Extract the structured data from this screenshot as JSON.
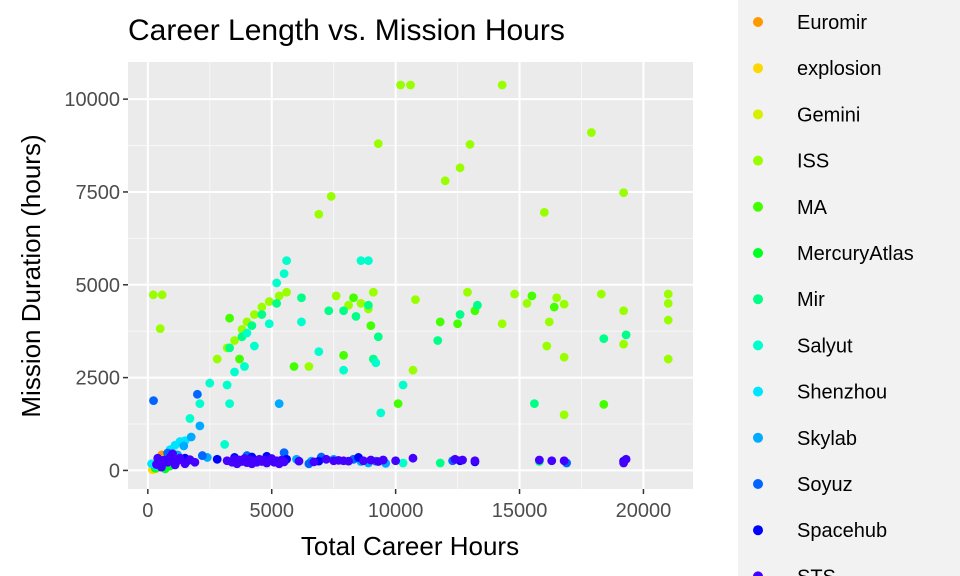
{
  "chart_data": {
    "type": "scatter",
    "title": "Career Length vs. Mission Hours",
    "xlabel": "Total Career Hours",
    "ylabel": "Mission Duration (hours)",
    "xlim": [
      -800,
      22000
    ],
    "ylim": [
      -500,
      11000
    ],
    "x_ticks": [
      0,
      5000,
      10000,
      15000,
      20000
    ],
    "y_ticks": [
      0,
      2500,
      5000,
      7500,
      10000
    ],
    "x_tick_labels": [
      "0",
      "5000",
      "10000",
      "15000",
      "20000"
    ],
    "y_tick_labels": [
      "0",
      "2500",
      "5000",
      "7500",
      "10000"
    ],
    "grid": true,
    "legend_position": "right",
    "series": [
      {
        "name": "Euromir",
        "color": "#ff9900",
        "points": [
          [
            560,
            420
          ],
          [
            640,
            330
          ]
        ]
      },
      {
        "name": "explosion",
        "color": "#ffd700",
        "points": [
          [
            180,
            20
          ],
          [
            320,
            40
          ]
        ]
      },
      {
        "name": "Gemini",
        "color": "#d6f000",
        "points": [
          [
            250,
            110
          ],
          [
            420,
            210
          ],
          [
            600,
            290
          ],
          [
            750,
            170
          ]
        ]
      },
      {
        "name": "ISS",
        "color": "#99ff00",
        "points": [
          [
            220,
            4730
          ],
          [
            580,
            4730
          ],
          [
            500,
            3820
          ],
          [
            2800,
            3000
          ],
          [
            3200,
            3300
          ],
          [
            3500,
            3500
          ],
          [
            3800,
            3800
          ],
          [
            4000,
            4000
          ],
          [
            4300,
            4200
          ],
          [
            4600,
            4400
          ],
          [
            4900,
            4550
          ],
          [
            5300,
            4700
          ],
          [
            5600,
            4800
          ],
          [
            6500,
            2800
          ],
          [
            6900,
            6900
          ],
          [
            7400,
            7380
          ],
          [
            7600,
            4700
          ],
          [
            8100,
            4450
          ],
          [
            8600,
            4500
          ],
          [
            8900,
            4350
          ],
          [
            9300,
            8800
          ],
          [
            9100,
            4800
          ],
          [
            10200,
            10380
          ],
          [
            10600,
            10380
          ],
          [
            10800,
            4600
          ],
          [
            12000,
            7800
          ],
          [
            12600,
            8150
          ],
          [
            12900,
            4800
          ],
          [
            13000,
            8780
          ],
          [
            14300,
            10380
          ],
          [
            14300,
            3950
          ],
          [
            14800,
            4750
          ],
          [
            15300,
            4500
          ],
          [
            16000,
            6950
          ],
          [
            16100,
            3350
          ],
          [
            16200,
            4000
          ],
          [
            16500,
            4650
          ],
          [
            16800,
            4480
          ],
          [
            16800,
            3050
          ],
          [
            16800,
            1500
          ],
          [
            17900,
            9100
          ],
          [
            18300,
            4750
          ],
          [
            19200,
            4300
          ],
          [
            19200,
            7480
          ],
          [
            19200,
            3400
          ],
          [
            21000,
            4750
          ],
          [
            21000,
            4500
          ],
          [
            21000,
            4050
          ],
          [
            21000,
            3000
          ],
          [
            10700,
            2700
          ]
        ]
      },
      {
        "name": "MA",
        "color": "#44ff00",
        "points": [
          [
            3300,
            4100
          ],
          [
            3700,
            3000
          ],
          [
            5900,
            2800
          ],
          [
            7900,
            3100
          ],
          [
            8300,
            4650
          ],
          [
            9000,
            3900
          ],
          [
            10100,
            1800
          ],
          [
            11800,
            4000
          ],
          [
            12500,
            3950
          ],
          [
            13200,
            4300
          ],
          [
            15500,
            4700
          ],
          [
            16400,
            4400
          ],
          [
            18400,
            1780
          ]
        ]
      },
      {
        "name": "MercuryAtlas",
        "color": "#00ff22",
        "points": [
          [
            300,
            60
          ],
          [
            450,
            90
          ],
          [
            700,
            40
          ],
          [
            900,
            120
          ]
        ]
      },
      {
        "name": "Mir",
        "color": "#00ff88",
        "points": [
          [
            3300,
            3300
          ],
          [
            3800,
            3600
          ],
          [
            4200,
            3900
          ],
          [
            4600,
            4200
          ],
          [
            5200,
            4500
          ],
          [
            6200,
            4650
          ],
          [
            7300,
            4300
          ],
          [
            7900,
            4300
          ],
          [
            8400,
            4150
          ],
          [
            8900,
            4450
          ],
          [
            9100,
            3000
          ],
          [
            9300,
            3600
          ],
          [
            11700,
            3500
          ],
          [
            12600,
            4200
          ],
          [
            13300,
            4450
          ],
          [
            15600,
            1800
          ],
          [
            15800,
            240
          ],
          [
            18400,
            3550
          ],
          [
            19300,
            3650
          ],
          [
            11800,
            200
          ]
        ]
      },
      {
        "name": "Salyut",
        "color": "#00ffcc",
        "points": [
          [
            1700,
            1400
          ],
          [
            2100,
            1800
          ],
          [
            2500,
            2350
          ],
          [
            3100,
            700
          ],
          [
            3300,
            1800
          ],
          [
            3500,
            2650
          ],
          [
            3900,
            2800
          ],
          [
            4300,
            3350
          ],
          [
            4900,
            3950
          ],
          [
            5200,
            5050
          ],
          [
            5600,
            5650
          ],
          [
            6200,
            4000
          ],
          [
            6900,
            3200
          ],
          [
            7900,
            2700
          ],
          [
            8600,
            5650
          ],
          [
            8900,
            5650
          ],
          [
            9200,
            2900
          ],
          [
            9400,
            1550
          ],
          [
            10300,
            2300
          ],
          [
            10300,
            200
          ],
          [
            3200,
            2300
          ],
          [
            4000,
            3700
          ],
          [
            5500,
            5300
          ]
        ]
      },
      {
        "name": "Shenzhou",
        "color": "#00e5ff",
        "points": [
          [
            150,
            180
          ],
          [
            500,
            260
          ],
          [
            900,
            560
          ],
          [
            1100,
            680
          ],
          [
            1300,
            780
          ],
          [
            1500,
            800
          ],
          [
            350,
            120
          ]
        ]
      },
      {
        "name": "Skylab",
        "color": "#00aaff",
        "points": [
          [
            1200,
            420
          ],
          [
            1450,
            660
          ],
          [
            1750,
            900
          ],
          [
            2100,
            1200
          ],
          [
            5300,
            1800
          ],
          [
            6000,
            300
          ],
          [
            6600,
            250
          ],
          [
            7500,
            300
          ],
          [
            8600,
            240
          ],
          [
            8900,
            200
          ],
          [
            9600,
            190
          ],
          [
            2400,
            350
          ]
        ]
      },
      {
        "name": "Soyuz",
        "color": "#0066ff",
        "points": [
          [
            230,
            1880
          ],
          [
            800,
            470
          ],
          [
            1000,
            330
          ],
          [
            1600,
            250
          ],
          [
            2000,
            2050
          ],
          [
            2200,
            400
          ],
          [
            4000,
            400
          ],
          [
            5500,
            480
          ],
          [
            6500,
            180
          ],
          [
            7000,
            360
          ],
          [
            8300,
            300
          ],
          [
            9200,
            250
          ],
          [
            12300,
            260
          ],
          [
            16900,
            200
          ]
        ]
      },
      {
        "name": "Spacehub",
        "color": "#0000ff",
        "points": [
          [
            700,
            260
          ],
          [
            1100,
            200
          ],
          [
            1500,
            330
          ],
          [
            2800,
            300
          ],
          [
            3500,
            350
          ],
          [
            4200,
            360
          ],
          [
            4800,
            380
          ],
          [
            5600,
            300
          ],
          [
            6900,
            250
          ],
          [
            8500,
            350
          ],
          [
            12600,
            260
          ],
          [
            13200,
            230
          ],
          [
            19200,
            250
          ]
        ]
      },
      {
        "name": "STS",
        "color": "#4400ff",
        "points": [
          [
            350,
            160
          ],
          [
            400,
            330
          ],
          [
            550,
            90
          ],
          [
            650,
            280
          ],
          [
            800,
            220
          ],
          [
            900,
            350
          ],
          [
            1000,
            450
          ],
          [
            1100,
            150
          ],
          [
            1200,
            260
          ],
          [
            1300,
            330
          ],
          [
            1500,
            180
          ],
          [
            1700,
            290
          ],
          [
            1900,
            220
          ],
          [
            3200,
            260
          ],
          [
            3400,
            220
          ],
          [
            3500,
            300
          ],
          [
            3600,
            180
          ],
          [
            3700,
            280
          ],
          [
            3800,
            240
          ],
          [
            3900,
            320
          ],
          [
            4000,
            210
          ],
          [
            4100,
            290
          ],
          [
            4200,
            180
          ],
          [
            4300,
            260
          ],
          [
            4400,
            220
          ],
          [
            4500,
            300
          ],
          [
            4600,
            240
          ],
          [
            4700,
            280
          ],
          [
            4800,
            200
          ],
          [
            4900,
            260
          ],
          [
            5000,
            320
          ],
          [
            5100,
            220
          ],
          [
            5200,
            260
          ],
          [
            5300,
            180
          ],
          [
            5400,
            280
          ],
          [
            5500,
            230
          ],
          [
            6100,
            250
          ],
          [
            6700,
            230
          ],
          [
            7200,
            300
          ],
          [
            7500,
            260
          ],
          [
            7700,
            270
          ],
          [
            7900,
            260
          ],
          [
            8100,
            250
          ],
          [
            8700,
            260
          ],
          [
            9000,
            280
          ],
          [
            9300,
            240
          ],
          [
            9500,
            280
          ],
          [
            10000,
            260
          ],
          [
            10700,
            330
          ],
          [
            12400,
            300
          ],
          [
            12700,
            280
          ],
          [
            13200,
            260
          ],
          [
            15800,
            280
          ],
          [
            16300,
            260
          ],
          [
            16800,
            260
          ],
          [
            19200,
            200
          ],
          [
            19300,
            300
          ]
        ]
      }
    ]
  }
}
